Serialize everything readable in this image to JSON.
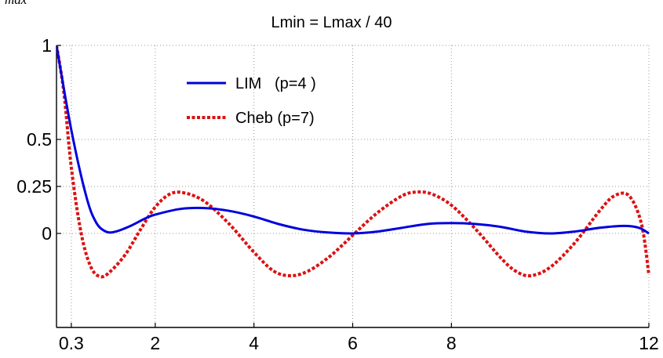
{
  "header_fragment": "max",
  "chart_data": {
    "type": "line",
    "title": "Lmin  = Lmax / 40",
    "xlabel": "",
    "ylabel": "",
    "xlim": [
      0,
      12
    ],
    "ylim": [
      -0.5,
      1
    ],
    "xticks": [
      {
        "value": 0.3,
        "label": "0.3"
      },
      {
        "value": 2,
        "label": "2"
      },
      {
        "value": 4,
        "label": "4"
      },
      {
        "value": 6,
        "label": "6"
      },
      {
        "value": 8,
        "label": "8"
      },
      {
        "value": 12,
        "label": "12"
      }
    ],
    "yticks": [
      {
        "value": 1,
        "label": "1"
      },
      {
        "value": 0.5,
        "label": "0.5"
      },
      {
        "value": 0.25,
        "label": "0.25"
      },
      {
        "value": 0,
        "label": "0"
      }
    ],
    "grid": true,
    "legend_position": "top-left",
    "series": [
      {
        "name": "LIM   (p=4 )",
        "color": "#0000dd",
        "style": "solid",
        "x": [
          0,
          0.3,
          0.6,
          0.8,
          1,
          1.2,
          1.5,
          1.8,
          2,
          2.5,
          3,
          3.5,
          4,
          4.5,
          5,
          5.5,
          6,
          6.5,
          7,
          7.5,
          8,
          8.5,
          9,
          9.5,
          10,
          10.5,
          11,
          11.5,
          11.8,
          12
        ],
        "y": [
          1,
          0.55,
          0.2,
          0.06,
          0.01,
          0.01,
          0.04,
          0.08,
          0.1,
          0.13,
          0.135,
          0.12,
          0.09,
          0.05,
          0.02,
          0.005,
          0.0,
          0.01,
          0.03,
          0.05,
          0.055,
          0.05,
          0.035,
          0.01,
          0.0,
          0.01,
          0.03,
          0.04,
          0.03,
          0.0
        ]
      },
      {
        "name": "Cheb (p=7)",
        "color": "#dd1111",
        "style": "dotted",
        "x": [
          0,
          0.15,
          0.3,
          0.5,
          0.7,
          0.9,
          1.1,
          1.4,
          1.7,
          2,
          2.3,
          2.6,
          3,
          3.5,
          4,
          4.4,
          4.75,
          5.1,
          5.5,
          5.8,
          6,
          6.5,
          7,
          7.3,
          7.6,
          8,
          8.5,
          9,
          9.3,
          9.6,
          10,
          10.5,
          11,
          11.3,
          11.6,
          11.85,
          12
        ],
        "y": [
          1,
          0.75,
          0.35,
          0.0,
          -0.18,
          -0.23,
          -0.2,
          -0.11,
          0.02,
          0.14,
          0.21,
          0.215,
          0.17,
          0.05,
          -0.1,
          -0.2,
          -0.225,
          -0.2,
          -0.13,
          -0.06,
          -0.01,
          0.11,
          0.2,
          0.22,
          0.21,
          0.15,
          0.02,
          -0.13,
          -0.2,
          -0.225,
          -0.18,
          -0.05,
          0.12,
          0.2,
          0.2,
          0.05,
          -0.22
        ]
      }
    ]
  }
}
